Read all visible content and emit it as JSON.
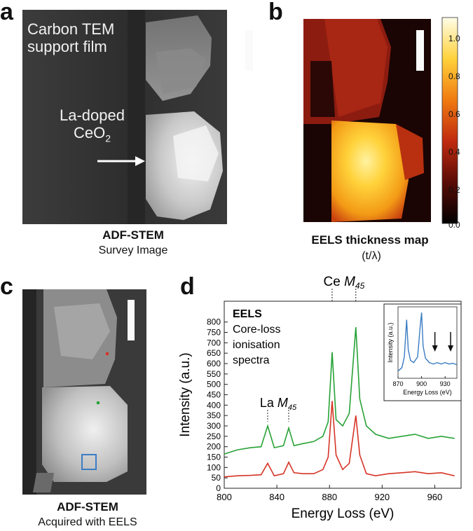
{
  "panels": {
    "a": {
      "letter": "a",
      "overlay_line1": "Carbon TEM",
      "overlay_line2": "support film",
      "label_line1": "La-doped",
      "label_line2_main": "CeO",
      "label_line2_sub": "2",
      "caption_bold": "ADF-STEM",
      "caption": "Survey Image"
    },
    "b": {
      "letter": "b",
      "caption_bold": "EELS thickness map",
      "caption": "(t/λ)",
      "colorbar_ticks": [
        "1.0",
        "0.8",
        "0.6",
        "0.4",
        "0.2",
        "0.0"
      ]
    },
    "c": {
      "letter": "c",
      "caption_bold": "ADF-STEM",
      "caption": "Acquired with EELS"
    },
    "d": {
      "letter": "d"
    }
  },
  "colors": {
    "green_series": "#27a236",
    "red_series": "#d63426",
    "blue_series": "#3a7cc2",
    "box_marker": "#3b7cc4"
  },
  "chart_data": [
    {
      "type": "line",
      "xlabel": "Energy Loss (eV)",
      "ylabel": "Intensity (a.u.)",
      "xlim": [
        800,
        980
      ],
      "ylim": [
        0,
        900
      ],
      "xticks": [
        800,
        840,
        880,
        920,
        960
      ],
      "yticks": [
        0,
        50,
        100,
        150,
        200,
        250,
        300,
        350,
        400,
        450,
        500,
        550,
        600,
        650,
        700,
        750,
        800
      ],
      "legend_title": "EELS",
      "legend_lines": [
        "Core-loss",
        "ionisation",
        "spectra"
      ],
      "annotations": [
        {
          "text_main": "Ce ",
          "text_italic": "M",
          "text_sub": "45",
          "x": [
            882,
            900
          ]
        },
        {
          "text_main": "La ",
          "text_italic": "M",
          "text_sub": "45",
          "x": [
            833,
            849
          ]
        }
      ],
      "series": [
        {
          "color": "green",
          "x": [
            800,
            810,
            820,
            828,
            833,
            838,
            845,
            849,
            853,
            860,
            868,
            875,
            879,
            882,
            885,
            890,
            895,
            900,
            903,
            908,
            915,
            925,
            935,
            945,
            955,
            965,
            975
          ],
          "values": [
            165,
            185,
            195,
            200,
            300,
            195,
            205,
            290,
            205,
            215,
            225,
            250,
            320,
            655,
            330,
            300,
            360,
            775,
            430,
            300,
            260,
            240,
            250,
            260,
            240,
            250,
            240
          ]
        },
        {
          "color": "red",
          "x": [
            800,
            810,
            820,
            828,
            833,
            838,
            845,
            849,
            853,
            860,
            868,
            875,
            879,
            882,
            885,
            890,
            895,
            900,
            903,
            908,
            915,
            925,
            935,
            945,
            955,
            965,
            975
          ],
          "values": [
            55,
            60,
            62,
            65,
            120,
            60,
            70,
            125,
            75,
            70,
            70,
            90,
            150,
            420,
            160,
            90,
            120,
            350,
            160,
            70,
            60,
            70,
            75,
            80,
            70,
            75,
            60
          ]
        }
      ]
    },
    {
      "type": "line",
      "title": "inset",
      "xlabel": "Energy Loss (eV)",
      "ylabel": "Intensity (a.u.)",
      "xlim": [
        870,
        945
      ],
      "xticks": [
        870,
        900,
        930
      ],
      "series": [
        {
          "color": "blue",
          "x": [
            870,
            875,
            878,
            881,
            883,
            886,
            890,
            895,
            898,
            900,
            902,
            905,
            910,
            915,
            920,
            925,
            930,
            935,
            940,
            945
          ],
          "values": [
            0.1,
            0.15,
            0.3,
            0.82,
            0.4,
            0.25,
            0.22,
            0.3,
            0.7,
            0.92,
            0.45,
            0.28,
            0.22,
            0.2,
            0.22,
            0.2,
            0.22,
            0.2,
            0.21,
            0.19
          ]
        }
      ],
      "arrows_at_x": [
        917,
        937
      ]
    }
  ]
}
